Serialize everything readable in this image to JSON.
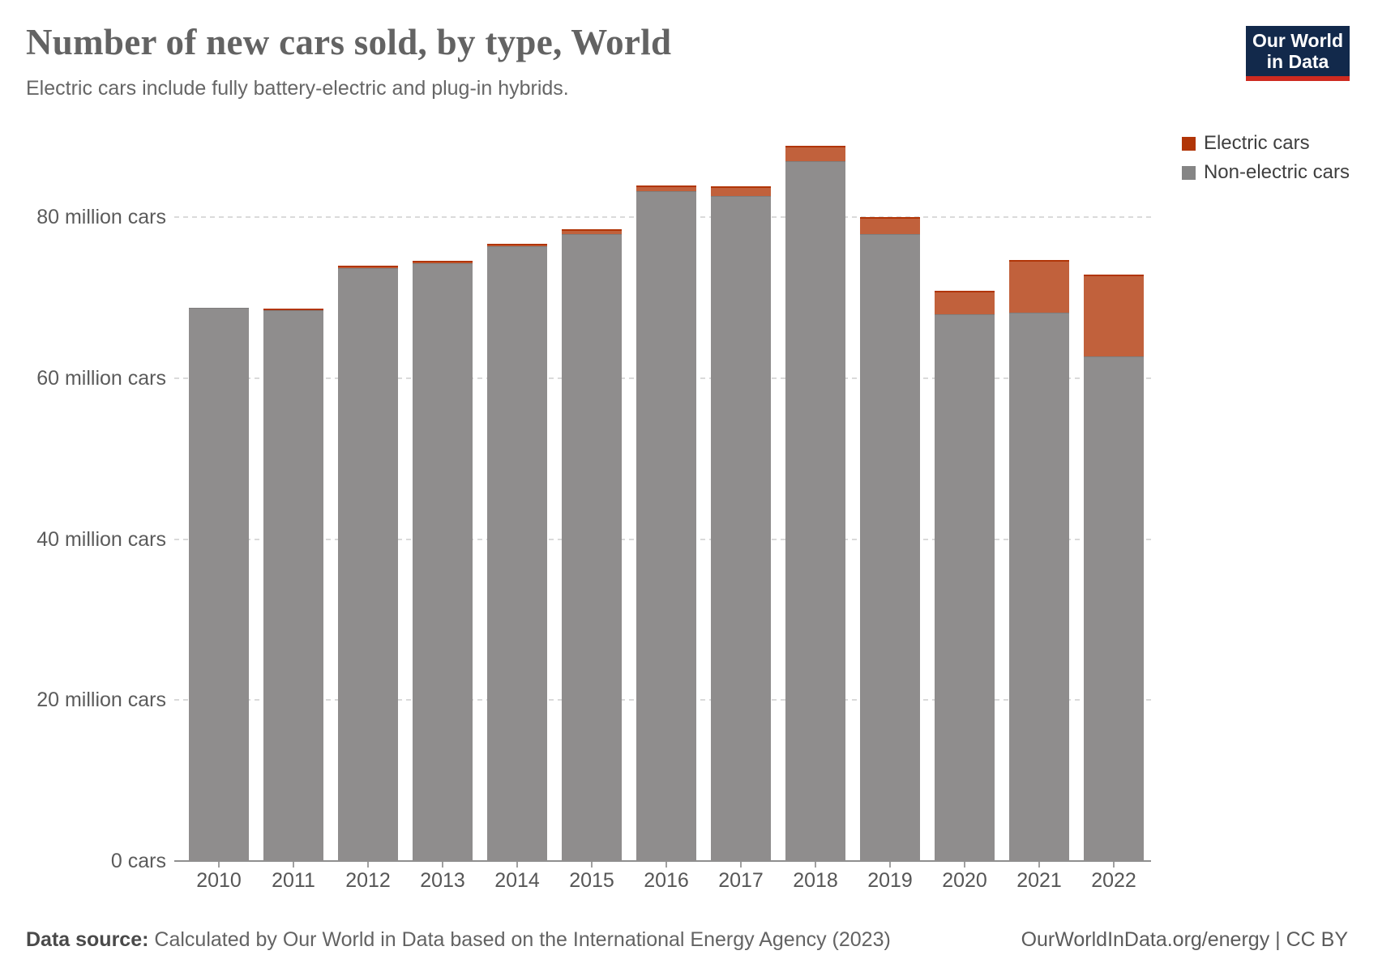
{
  "header": {
    "title": "Number of new cars sold, by type, World",
    "subtitle": "Electric cars include fully battery-electric and plug-in hybrids."
  },
  "logo": {
    "line1": "Our World",
    "line2": "in Data",
    "bg_color": "#12294b",
    "underline_color": "#ce2a20"
  },
  "legend": [
    {
      "label": "Electric cars",
      "color": "#b13507"
    },
    {
      "label": "Non-electric cars",
      "color": "#858585"
    }
  ],
  "chart_data": {
    "type": "bar",
    "stacked": true,
    "title": "Number of new cars sold, by type, World",
    "xlabel": "",
    "ylabel": "",
    "grid": "horizontal-dashed",
    "legend_position": "top-right",
    "ylim": [
      0,
      90
    ],
    "unit": "million cars",
    "categories": [
      "2010",
      "2011",
      "2012",
      "2013",
      "2014",
      "2015",
      "2016",
      "2017",
      "2018",
      "2019",
      "2020",
      "2021",
      "2022"
    ],
    "series": [
      {
        "name": "Electric cars",
        "color": "#b13507",
        "fill": "#c1613c",
        "stroke": "#b13507",
        "values": [
          0.01,
          0.05,
          0.13,
          0.21,
          0.32,
          0.55,
          0.76,
          1.19,
          1.98,
          2.09,
          2.99,
          6.6,
          10.2
        ]
      },
      {
        "name": "Non-electric cars",
        "color": "#858585",
        "fill": "#8f8d8d",
        "stroke": "#7f7d7d",
        "values": [
          68.7,
          68.4,
          73.7,
          74.3,
          76.4,
          77.9,
          83.2,
          82.6,
          86.9,
          77.9,
          67.9,
          68.1,
          62.7
        ]
      }
    ],
    "yticks": [
      {
        "value": 0,
        "label": "0 cars"
      },
      {
        "value": 20,
        "label": "20 million cars"
      },
      {
        "value": 40,
        "label": "40 million cars"
      },
      {
        "value": 60,
        "label": "60 million cars"
      },
      {
        "value": 80,
        "label": "80 million cars"
      }
    ]
  },
  "footer": {
    "source_label": "Data source:",
    "source_text": " Calculated by Our World in Data based on the International Energy Agency (2023)",
    "link_text": "OurWorldInData.org/energy",
    "license_text": " | CC BY"
  }
}
